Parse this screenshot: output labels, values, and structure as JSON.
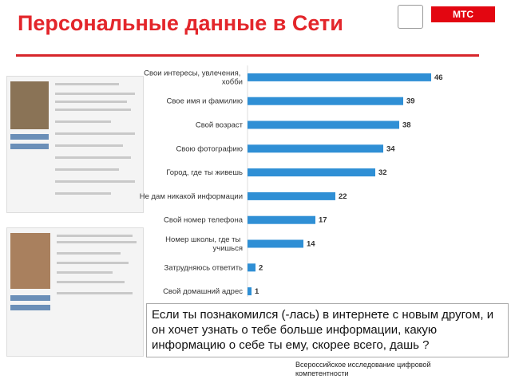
{
  "header": {
    "title": "Персональные данные в Сети",
    "logo": "МТС"
  },
  "chart_data": {
    "type": "bar",
    "orientation": "horizontal",
    "color": "#2f8fd5",
    "categories": [
      "Свои интересы, увлечения, хобби",
      "Свое имя и фамилию",
      "Свой возраст",
      "Свою фотографию",
      "Город, где ты живешь",
      "Не дам никакой информации",
      "Свой номер телефона",
      "Номер школы, где ты учишься",
      "Затрудняюсь ответить",
      "Свой домашний адрес"
    ],
    "values": [
      46,
      39,
      38,
      34,
      32,
      22,
      17,
      14,
      2,
      1
    ]
  },
  "question": "Если ты познакомился (-лась) в интернете с новым другом, и он хочет узнать о тебе больше информации, какую информацию о себе ты ему, скорее всего, дашь ?",
  "source": "Всероссийское исследование цифровой компетентности"
}
